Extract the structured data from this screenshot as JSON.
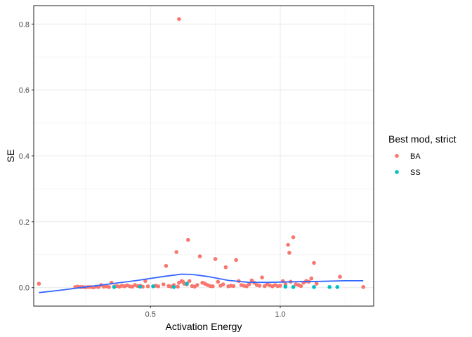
{
  "chart_data": {
    "type": "scatter",
    "title": "",
    "xlabel": "Activation Energy",
    "ylabel": "SE",
    "xlim": [
      0.05,
      1.36
    ],
    "ylim": [
      -0.056,
      0.856
    ],
    "x_ticks": [
      {
        "value": 0.5,
        "label": "0.5"
      },
      {
        "value": 1.0,
        "label": "1.0"
      }
    ],
    "y_ticks": [
      {
        "value": 0.0,
        "label": "0.0"
      },
      {
        "value": 0.2,
        "label": "0.2"
      },
      {
        "value": 0.4,
        "label": "0.4"
      },
      {
        "value": 0.6,
        "label": "0.6"
      },
      {
        "value": 0.8,
        "label": "0.8"
      }
    ],
    "grid": true,
    "legend": {
      "title": "Best mod, strict",
      "position": "right",
      "entries": [
        {
          "label": "BA",
          "color": "#F8766D"
        },
        {
          "label": "SS",
          "color": "#00BFC4"
        }
      ]
    },
    "smooth_color": "#3366FF",
    "series": [
      {
        "name": "BA",
        "color": "#F8766D",
        "points": [
          [
            0.07,
            0.012
          ],
          [
            0.21,
            0.002
          ],
          [
            0.22,
            0.003
          ],
          [
            0.23,
            0.002
          ],
          [
            0.24,
            0.002
          ],
          [
            0.25,
            0.001
          ],
          [
            0.26,
            0.002
          ],
          [
            0.27,
            0.002
          ],
          [
            0.28,
            0.001
          ],
          [
            0.29,
            0.003
          ],
          [
            0.3,
            0.002
          ],
          [
            0.31,
            0.008
          ],
          [
            0.32,
            0.003
          ],
          [
            0.33,
            0.004
          ],
          [
            0.34,
            0.002
          ],
          [
            0.35,
            0.015
          ],
          [
            0.36,
            0.003
          ],
          [
            0.37,
            0.005
          ],
          [
            0.38,
            0.003
          ],
          [
            0.39,
            0.006
          ],
          [
            0.4,
            0.004
          ],
          [
            0.41,
            0.007
          ],
          [
            0.42,
            0.004
          ],
          [
            0.43,
            0.003
          ],
          [
            0.44,
            0.008
          ],
          [
            0.45,
            0.005
          ],
          [
            0.46,
            0.006
          ],
          [
            0.47,
            0.003
          ],
          [
            0.48,
            0.02
          ],
          [
            0.49,
            0.004
          ],
          [
            0.52,
            0.006
          ],
          [
            0.53,
            0.004
          ],
          [
            0.55,
            0.01
          ],
          [
            0.56,
            0.066
          ],
          [
            0.57,
            0.005
          ],
          [
            0.58,
            0.003
          ],
          [
            0.59,
            0.008
          ],
          [
            0.6,
            0.108
          ],
          [
            0.605,
            0.003
          ],
          [
            0.61,
            0.015
          ],
          [
            0.62,
            0.02
          ],
          [
            0.625,
            0.018
          ],
          [
            0.63,
            0.012
          ],
          [
            0.64,
            0.01
          ],
          [
            0.645,
            0.145
          ],
          [
            0.65,
            0.02
          ],
          [
            0.66,
            0.005
          ],
          [
            0.67,
            0.003
          ],
          [
            0.68,
            0.008
          ],
          [
            0.69,
            0.095
          ],
          [
            0.7,
            0.015
          ],
          [
            0.71,
            0.012
          ],
          [
            0.72,
            0.008
          ],
          [
            0.73,
            0.005
          ],
          [
            0.74,
            0.004
          ],
          [
            0.75,
            0.087
          ],
          [
            0.76,
            0.018
          ],
          [
            0.77,
            0.006
          ],
          [
            0.78,
            0.01
          ],
          [
            0.79,
            0.062
          ],
          [
            0.8,
            0.004
          ],
          [
            0.81,
            0.006
          ],
          [
            0.82,
            0.005
          ],
          [
            0.83,
            0.084
          ],
          [
            0.84,
            0.02
          ],
          [
            0.85,
            0.008
          ],
          [
            0.86,
            0.006
          ],
          [
            0.87,
            0.004
          ],
          [
            0.88,
            0.01
          ],
          [
            0.89,
            0.022
          ],
          [
            0.9,
            0.015
          ],
          [
            0.91,
            0.008
          ],
          [
            0.92,
            0.006
          ],
          [
            0.93,
            0.031
          ],
          [
            0.94,
            0.005
          ],
          [
            0.95,
            0.01
          ],
          [
            0.96,
            0.007
          ],
          [
            0.97,
            0.004
          ],
          [
            0.98,
            0.008
          ],
          [
            0.99,
            0.005
          ],
          [
            1.0,
            0.006
          ],
          [
            1.01,
            0.02
          ],
          [
            1.02,
            0.01
          ],
          [
            1.03,
            0.13
          ],
          [
            1.035,
            0.106
          ],
          [
            1.04,
            0.018
          ],
          [
            1.05,
            0.153
          ],
          [
            1.06,
            0.01
          ],
          [
            1.07,
            0.008
          ],
          [
            1.08,
            0.005
          ],
          [
            1.09,
            0.015
          ],
          [
            1.1,
            0.02
          ],
          [
            1.11,
            0.018
          ],
          [
            1.12,
            0.028
          ],
          [
            1.13,
            0.075
          ],
          [
            1.14,
            0.012
          ],
          [
            1.23,
            0.033
          ],
          [
            1.32,
            0.002
          ],
          [
            0.61,
            0.815
          ]
        ]
      },
      {
        "name": "SS",
        "color": "#00BFC4",
        "points": [
          [
            0.36,
            0.002
          ],
          [
            0.46,
            0.003
          ],
          [
            0.51,
            0.004
          ],
          [
            0.59,
            0.002
          ],
          [
            0.64,
            0.012
          ],
          [
            1.02,
            0.003
          ],
          [
            1.05,
            0.002
          ],
          [
            1.13,
            0.002
          ],
          [
            1.19,
            0.002
          ],
          [
            1.22,
            0.002
          ]
        ]
      }
    ],
    "smooth_line": [
      [
        0.07,
        -0.015
      ],
      [
        0.15,
        -0.008
      ],
      [
        0.25,
        0.002
      ],
      [
        0.35,
        0.012
      ],
      [
        0.45,
        0.022
      ],
      [
        0.55,
        0.034
      ],
      [
        0.62,
        0.041
      ],
      [
        0.66,
        0.04
      ],
      [
        0.72,
        0.034
      ],
      [
        0.8,
        0.022
      ],
      [
        0.88,
        0.016
      ],
      [
        0.95,
        0.016
      ],
      [
        1.05,
        0.018
      ],
      [
        1.15,
        0.019
      ],
      [
        1.25,
        0.021
      ],
      [
        1.32,
        0.021
      ]
    ]
  }
}
